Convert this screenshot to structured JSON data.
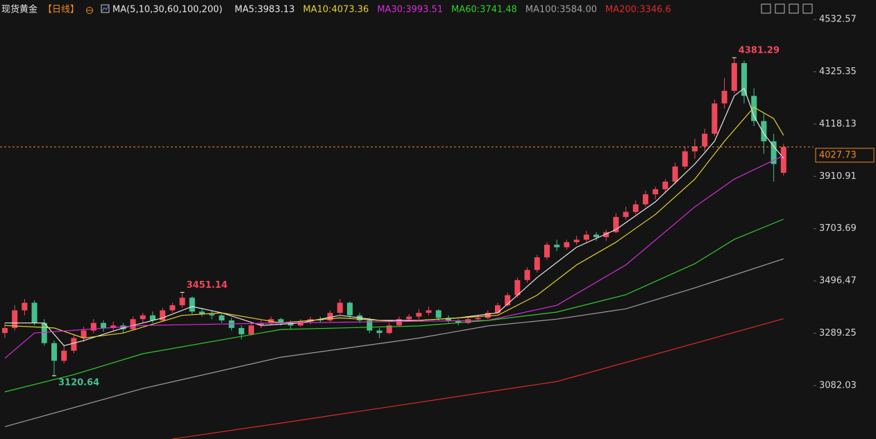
{
  "chart_data": {
    "type": "candlestick",
    "title": "现货黄金",
    "period": "【日线】",
    "indicator": "MA(5,10,30,60,100,200)",
    "up_color": "#f0475a",
    "down_color": "#45bf8c",
    "ylim": [
      2870,
      4555
    ],
    "yticks": [
      3082.03,
      3289.25,
      3496.47,
      3703.69,
      3910.91,
      4118.13,
      4325.35,
      4532.57
    ],
    "last_price": 4027.73,
    "annotations": [
      4381.29,
      3451.14,
      3120.64
    ],
    "ohlc": [
      [
        3290,
        3330,
        3270,
        3310
      ],
      [
        3310,
        3400,
        3300,
        3380
      ],
      [
        3380,
        3425,
        3360,
        3410
      ],
      [
        3410,
        3420,
        3320,
        3330
      ],
      [
        3330,
        3345,
        3240,
        3250
      ],
      [
        3250,
        3260,
        3120.64,
        3180
      ],
      [
        3180,
        3240,
        3170,
        3220
      ],
      [
        3220,
        3285,
        3210,
        3270
      ],
      [
        3270,
        3315,
        3255,
        3300
      ],
      [
        3300,
        3345,
        3290,
        3330
      ],
      [
        3330,
        3340,
        3295,
        3310
      ],
      [
        3310,
        3335,
        3300,
        3320
      ],
      [
        3320,
        3330,
        3290,
        3305
      ],
      [
        3305,
        3355,
        3300,
        3345
      ],
      [
        3345,
        3370,
        3330,
        3360
      ],
      [
        3360,
        3375,
        3330,
        3340
      ],
      [
        3340,
        3390,
        3335,
        3380
      ],
      [
        3380,
        3410,
        3370,
        3400
      ],
      [
        3400,
        3451.14,
        3390,
        3430
      ],
      [
        3430,
        3435,
        3365,
        3375
      ],
      [
        3375,
        3390,
        3355,
        3365
      ],
      [
        3365,
        3380,
        3345,
        3360
      ],
      [
        3360,
        3370,
        3330,
        3340
      ],
      [
        3340,
        3350,
        3300,
        3310
      ],
      [
        3310,
        3320,
        3265,
        3285
      ],
      [
        3285,
        3330,
        3280,
        3320
      ],
      [
        3320,
        3340,
        3310,
        3330
      ],
      [
        3330,
        3355,
        3320,
        3345
      ],
      [
        3345,
        3350,
        3320,
        3330
      ],
      [
        3330,
        3340,
        3305,
        3320
      ],
      [
        3320,
        3345,
        3315,
        3335
      ],
      [
        3335,
        3355,
        3325,
        3345
      ],
      [
        3345,
        3355,
        3330,
        3340
      ],
      [
        3340,
        3380,
        3335,
        3370
      ],
      [
        3370,
        3425,
        3365,
        3410
      ],
      [
        3410,
        3415,
        3350,
        3360
      ],
      [
        3360,
        3370,
        3330,
        3340
      ],
      [
        3340,
        3350,
        3290,
        3300
      ],
      [
        3300,
        3310,
        3270,
        3290
      ],
      [
        3290,
        3330,
        3285,
        3320
      ],
      [
        3320,
        3355,
        3315,
        3345
      ],
      [
        3345,
        3365,
        3335,
        3355
      ],
      [
        3355,
        3385,
        3345,
        3370
      ],
      [
        3370,
        3395,
        3360,
        3380
      ],
      [
        3380,
        3385,
        3340,
        3350
      ],
      [
        3350,
        3360,
        3330,
        3340
      ],
      [
        3340,
        3345,
        3320,
        3330
      ],
      [
        3330,
        3355,
        3325,
        3345
      ],
      [
        3345,
        3360,
        3335,
        3350
      ],
      [
        3350,
        3380,
        3345,
        3370
      ],
      [
        3370,
        3410,
        3365,
        3400
      ],
      [
        3400,
        3450,
        3395,
        3440
      ],
      [
        3440,
        3510,
        3430,
        3500
      ],
      [
        3500,
        3550,
        3490,
        3540
      ],
      [
        3540,
        3600,
        3530,
        3590
      ],
      [
        3590,
        3650,
        3580,
        3640
      ],
      [
        3640,
        3660,
        3615,
        3630
      ],
      [
        3630,
        3660,
        3620,
        3650
      ],
      [
        3650,
        3675,
        3640,
        3660
      ],
      [
        3660,
        3695,
        3650,
        3680
      ],
      [
        3680,
        3690,
        3655,
        3670
      ],
      [
        3670,
        3700,
        3655,
        3690
      ],
      [
        3690,
        3765,
        3685,
        3750
      ],
      [
        3750,
        3790,
        3740,
        3770
      ],
      [
        3770,
        3815,
        3760,
        3800
      ],
      [
        3800,
        3855,
        3790,
        3840
      ],
      [
        3840,
        3870,
        3820,
        3860
      ],
      [
        3860,
        3900,
        3845,
        3890
      ],
      [
        3890,
        3965,
        3880,
        3950
      ],
      [
        3950,
        4030,
        3940,
        4010
      ],
      [
        4010,
        4060,
        3980,
        4030
      ],
      [
        4030,
        4100,
        4010,
        4080
      ],
      [
        4080,
        4215,
        4070,
        4200
      ],
      [
        4200,
        4300,
        4180,
        4250
      ],
      [
        4250,
        4381.29,
        4240,
        4360
      ],
      [
        4360,
        4370,
        4200,
        4230
      ],
      [
        4230,
        4260,
        4110,
        4130
      ],
      [
        4130,
        4160,
        4000,
        4050
      ],
      [
        4050,
        4080,
        3890,
        3960
      ],
      [
        3925,
        4040,
        3915,
        4027.73
      ]
    ],
    "series": [
      {
        "name": "MA5:3983.13",
        "color": "#e8e8e8",
        "x": [
          0,
          4,
          6,
          8,
          12,
          16,
          19,
          22,
          26,
          30,
          34,
          38,
          42,
          46,
          50,
          54,
          58,
          62,
          66,
          70,
          72,
          74,
          75,
          76,
          77,
          78,
          79
        ],
        "values": [
          3330,
          3330,
          3240,
          3260,
          3310,
          3350,
          3395,
          3370,
          3320,
          3330,
          3360,
          3340,
          3340,
          3350,
          3370,
          3510,
          3630,
          3700,
          3810,
          3960,
          4050,
          4230,
          4260,
          4150,
          4080,
          4030,
          3983.13
        ]
      },
      {
        "name": "MA10:4073.36",
        "color": "#e5d32d",
        "x": [
          0,
          5,
          8,
          12,
          18,
          22,
          28,
          34,
          40,
          46,
          50,
          54,
          58,
          62,
          66,
          70,
          73,
          76,
          78,
          79
        ],
        "values": [
          3320,
          3310,
          3270,
          3290,
          3360,
          3370,
          3330,
          3350,
          3335,
          3350,
          3360,
          3440,
          3560,
          3650,
          3760,
          3900,
          4050,
          4185,
          4140,
          4073.36
        ]
      },
      {
        "name": "MA30:3993.51",
        "color": "#d92cd9",
        "x": [
          0,
          3,
          14,
          28,
          49,
          56,
          63,
          70,
          74,
          79
        ],
        "values": [
          3190,
          3290,
          3320,
          3330,
          3340,
          3400,
          3560,
          3790,
          3900,
          3993.51
        ]
      },
      {
        "name": "MA60:3741.48",
        "color": "#2fcf2f",
        "x": [
          0,
          7,
          14,
          28,
          42,
          49,
          56,
          63,
          70,
          74,
          79
        ],
        "values": [
          3057,
          3125,
          3208,
          3304,
          3318,
          3340,
          3373,
          3442,
          3565,
          3661,
          3741.48
        ]
      },
      {
        "name": "MA100:3584.00",
        "color": "#a0a0a0",
        "x": [
          0,
          14,
          28,
          42,
          49,
          56,
          63,
          70,
          79
        ],
        "values": [
          2919,
          3070,
          3194,
          3270,
          3318,
          3345,
          3386,
          3469,
          3584
        ]
      },
      {
        "name": "MA200:3346.6",
        "color": "#e02a2a",
        "x": [
          17,
          28,
          42,
          56,
          70,
          79
        ],
        "values": [
          2870,
          2933,
          3015,
          3098,
          3249,
          3346.6
        ]
      }
    ]
  }
}
